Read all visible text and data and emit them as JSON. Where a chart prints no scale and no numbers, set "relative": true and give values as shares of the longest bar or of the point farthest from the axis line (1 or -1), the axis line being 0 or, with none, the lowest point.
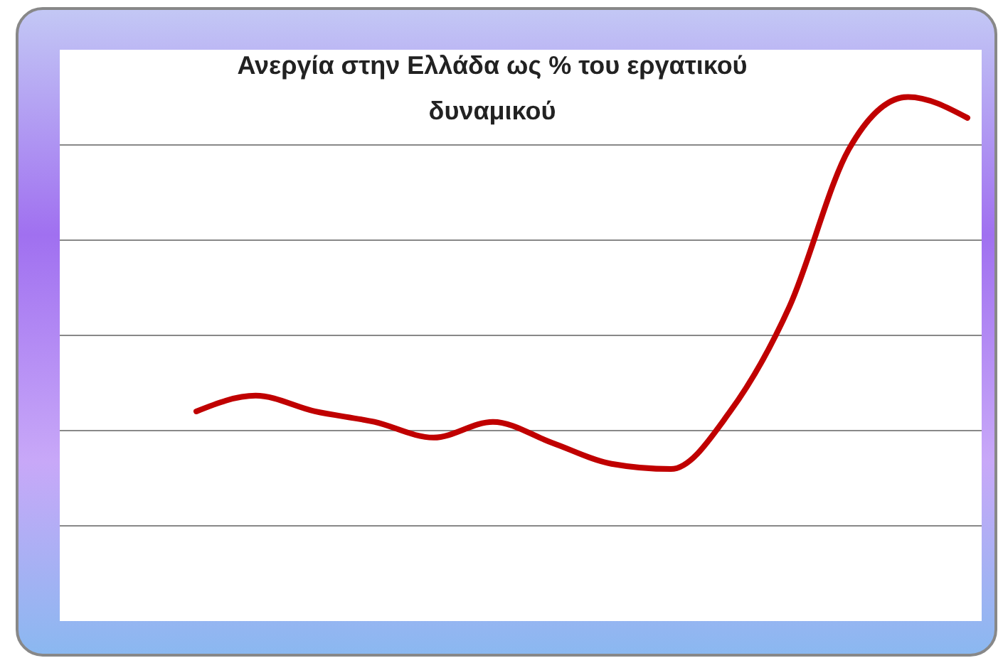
{
  "chart_data": {
    "type": "line",
    "title": "Ανεργία στην Ελλάδα ως % του εργατικού δυναμικού",
    "relative": true,
    "grid": "y",
    "categories": [
      null,
      null,
      null,
      null,
      null,
      null,
      null,
      null,
      null,
      null,
      null,
      null,
      null,
      null
    ],
    "series": [
      {
        "color": "#c00000",
        "values": [
          0.4,
          0.43,
          0.4,
          0.38,
          0.35,
          0.38,
          0.34,
          0.3,
          0.29,
          0.4,
          0.6,
          0.9,
          1.0,
          0.96
        ]
      }
    ]
  }
}
